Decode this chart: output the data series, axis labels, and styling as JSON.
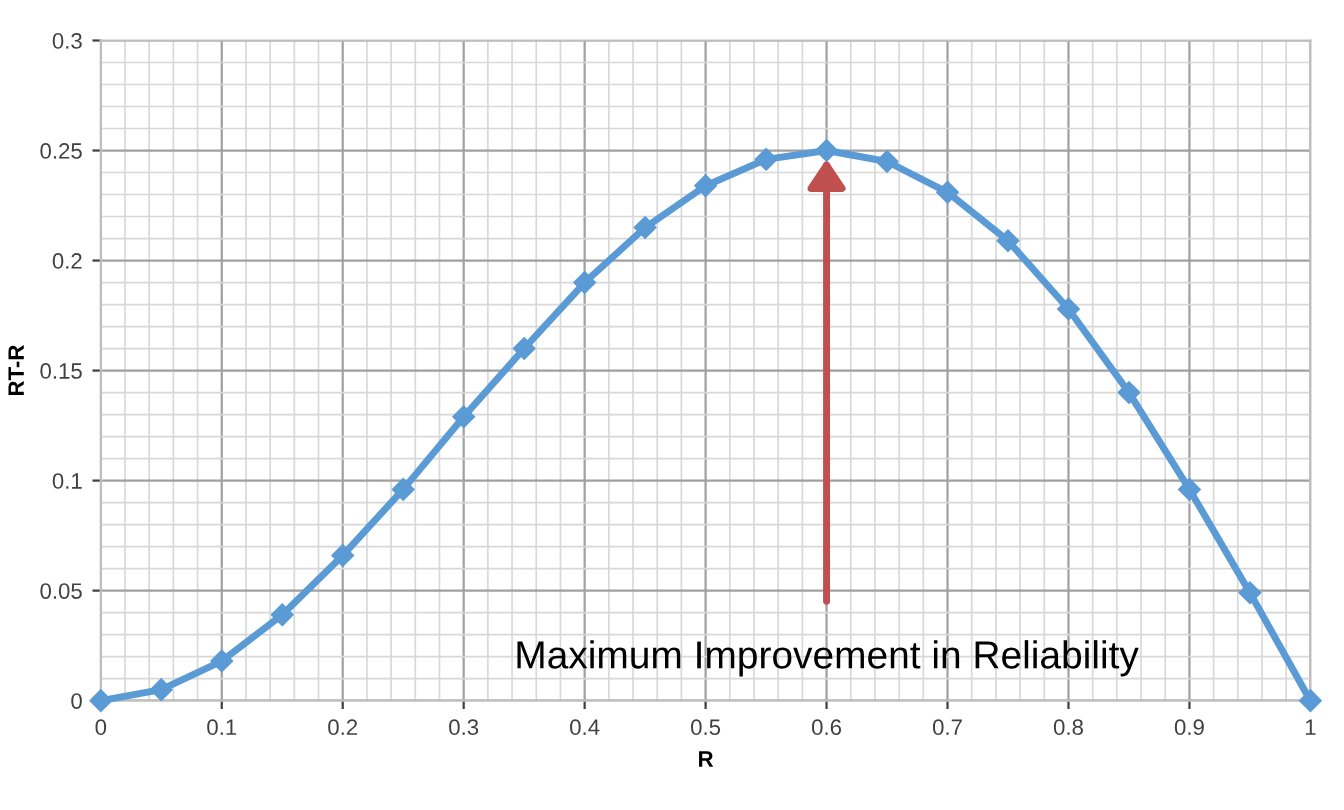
{
  "chart_data": {
    "type": "line",
    "xlabel": "R",
    "ylabel": "RT-R",
    "x": [
      0,
      0.05,
      0.1,
      0.15,
      0.2,
      0.25,
      0.3,
      0.35,
      0.4,
      0.45,
      0.5,
      0.55,
      0.6,
      0.65,
      0.7,
      0.75,
      0.8,
      0.85,
      0.9,
      0.95,
      1
    ],
    "series": [
      {
        "color": "#5b9bd5",
        "values": [
          0,
          0.005,
          0.018,
          0.039,
          0.066,
          0.096,
          0.129,
          0.16,
          0.19,
          0.215,
          0.234,
          0.246,
          0.25,
          0.245,
          0.231,
          0.209,
          0.178,
          0.14,
          0.096,
          0.049,
          0
        ]
      }
    ],
    "xlim": [
      0,
      1
    ],
    "xticks": [
      0,
      0.1,
      0.2,
      0.3,
      0.4,
      0.5,
      0.6,
      0.7,
      0.8,
      0.9,
      1
    ],
    "ylim": [
      0,
      0.3
    ],
    "yticks": [
      0,
      0.05,
      0.1,
      0.15,
      0.2,
      0.25,
      0.3
    ],
    "grid": true,
    "marker": "diamond",
    "line_style": "solid",
    "legend": false,
    "annotations": [
      {
        "text": "Maximum Improvement in Reliability",
        "x": 0.6,
        "y": 0.25
      }
    ]
  }
}
